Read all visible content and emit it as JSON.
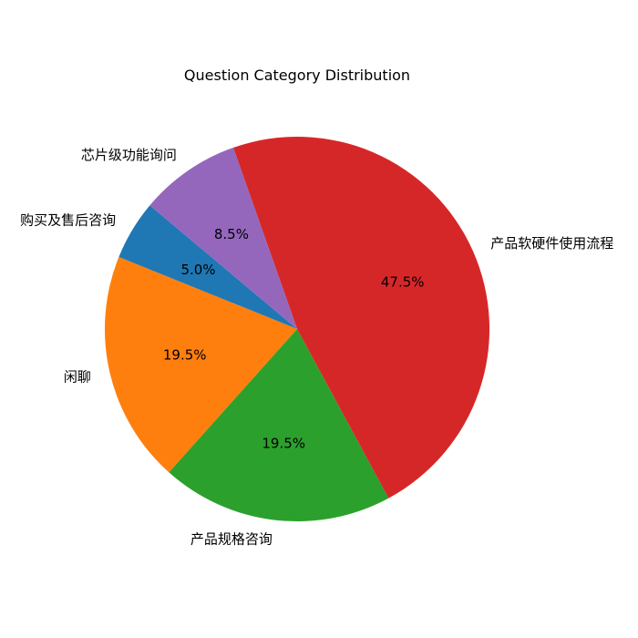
{
  "chart_data": {
    "type": "pie",
    "title": "Question Category Distribution",
    "start_angle_deg": 140,
    "direction": "counterclockwise",
    "slices": [
      {
        "label": "购买及售后咨询",
        "value": 5.0,
        "pct_text": "5.0%",
        "color": "#1f77b4"
      },
      {
        "label": "闲聊",
        "value": 19.5,
        "pct_text": "19.5%",
        "color": "#ff7f0e"
      },
      {
        "label": "产品规格咨询",
        "value": 19.5,
        "pct_text": "19.5%",
        "color": "#2ca02c"
      },
      {
        "label": "产品软硬件使用流程",
        "value": 47.5,
        "pct_text": "47.5%",
        "color": "#d62728"
      },
      {
        "label": "芯片级功能询问",
        "value": 8.5,
        "pct_text": "8.5%",
        "color": "#9467bd"
      }
    ]
  }
}
